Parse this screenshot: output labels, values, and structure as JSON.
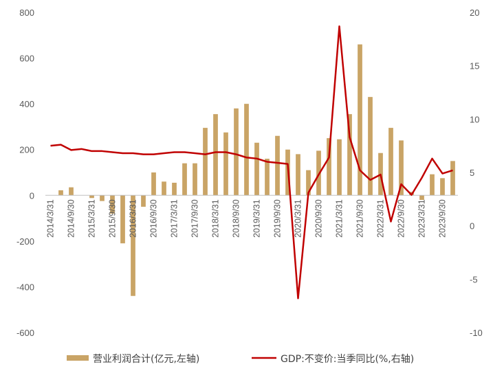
{
  "chart_data": {
    "type": "bar+line",
    "legend_position": "bottom",
    "grid": false,
    "x": [
      "2014/3/31",
      "2014/6/30",
      "2014/9/30",
      "2014/12/31",
      "2015/3/31",
      "2015/6/30",
      "2015/9/30",
      "2015/12/31",
      "2016/3/31",
      "2016/6/30",
      "2016/9/30",
      "2016/12/31",
      "2017/3/31",
      "2017/6/30",
      "2017/9/30",
      "2017/12/31",
      "2018/3/31",
      "2018/6/30",
      "2018/9/30",
      "2018/12/31",
      "2019/3/31",
      "2019/6/30",
      "2019/9/30",
      "2019/12/31",
      "2020/3/31",
      "2020/6/30",
      "2020/9/30",
      "2020/12/31",
      "2021/3/31",
      "2021/6/30",
      "2021/9/30",
      "2021/12/31",
      "2022/3/31",
      "2022/6/30",
      "2022/9/30",
      "2022/12/31",
      "2023/3/31",
      "2023/6/30",
      "2023/9/30",
      "2023/12/31"
    ],
    "x_tick_labels": [
      "2014/3/31",
      "2014/9/30",
      "2015/3/31",
      "2015/9/30",
      "2016/3/31",
      "2016/9/30",
      "2017/3/31",
      "2017/9/30",
      "2018/3/31",
      "2018/9/30",
      "2019/3/31",
      "2019/9/30",
      "2020/3/31",
      "2020/9/30",
      "2021/3/31",
      "2021/9/30",
      "2022/3/31",
      "2022/9/30",
      "2023/3/31",
      "2023/9/30"
    ],
    "left_axis": {
      "ylim": [
        -600,
        800
      ],
      "ticks": [
        -600,
        -400,
        -200,
        0,
        200,
        400,
        600,
        800
      ]
    },
    "right_axis": {
      "ylim": [
        -10,
        20
      ],
      "ticks": [
        -10,
        -5,
        0,
        5,
        10,
        15,
        20
      ]
    },
    "series": [
      {
        "name": "营业利润合计(亿元,左轴)",
        "type": "bar",
        "axis": "left",
        "color": "#C9A466",
        "values": [
          0,
          22,
          35,
          0,
          -12,
          -25,
          -80,
          -210,
          -440,
          -50,
          100,
          60,
          55,
          140,
          140,
          295,
          355,
          275,
          380,
          400,
          230,
          160,
          260,
          200,
          180,
          110,
          195,
          250,
          245,
          355,
          660,
          430,
          185,
          295,
          240,
          15,
          -20,
          92,
          75,
          150
        ]
      },
      {
        "name": "GDP:不变价:当季同比(%,右轴)",
        "type": "line",
        "axis": "right",
        "color": "#C00000",
        "values": [
          7.5,
          7.6,
          7.1,
          7.2,
          7.0,
          7.0,
          6.9,
          6.8,
          6.8,
          6.7,
          6.7,
          6.8,
          6.9,
          6.9,
          6.8,
          6.7,
          6.9,
          6.9,
          6.7,
          6.4,
          6.3,
          6.0,
          5.9,
          5.8,
          -6.8,
          3.1,
          4.8,
          6.4,
          18.7,
          8.3,
          5.2,
          4.3,
          4.8,
          0.4,
          3.9,
          2.9,
          4.5,
          6.3,
          4.9,
          5.2
        ]
      }
    ]
  }
}
